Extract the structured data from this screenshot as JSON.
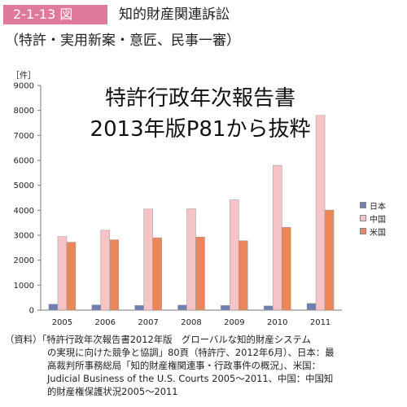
{
  "figure": {
    "badge": "2-1-13 図",
    "title": "知的財産関連訴訟",
    "subtitle": "（特許・実用新案・意匠、民事一審）"
  },
  "overlay": {
    "line1": "特許行政年次報告書",
    "line2": "2013年版P81から抜粋"
  },
  "colors": {
    "badge": "#e07a9a",
    "japan": "#6f7fb0",
    "china": "#f6c3c6",
    "usa": "#e9875a",
    "axis": "#777777"
  },
  "chart_data": {
    "type": "bar",
    "unit_label": "［件］",
    "categories": [
      "2005",
      "2006",
      "2007",
      "2008",
      "2009",
      "2010",
      "2011"
    ],
    "series": [
      {
        "name": "日本",
        "values": [
          240,
          210,
          190,
          200,
          190,
          170,
          270
        ]
      },
      {
        "name": "中国",
        "values": [
          2950,
          3200,
          4050,
          4060,
          4420,
          5800,
          7800
        ]
      },
      {
        "name": "米国",
        "values": [
          2720,
          2820,
          2900,
          2930,
          2780,
          3320,
          4010
        ]
      }
    ],
    "ylim": [
      0,
      9000
    ],
    "yticks": [
      "0",
      "1000",
      "2000",
      "3000",
      "4000",
      "5000",
      "6000",
      "7000",
      "8000",
      "9000"
    ],
    "grid": false,
    "legend_position": "right"
  },
  "source": {
    "lines": [
      "（資料）「特許行政年次報告書2012年版　グローバルな知的財産システム",
      "の実現に向けた競争と協調」80頁（特許庁、2012年6月）、日本：最",
      "高裁判所事務総局「知的財産権関連事・行政事件の概況」、米国：",
      "Judicial Business of the U.S. Courts 2005～2011、中国：中国知",
      "的財産権保護状況2005～2011"
    ]
  }
}
